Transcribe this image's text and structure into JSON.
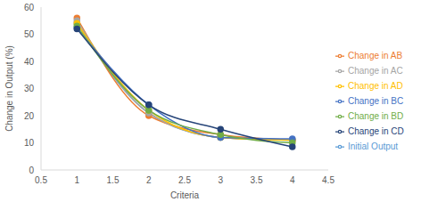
{
  "chart_data": {
    "type": "line",
    "x_label": "Criteria",
    "y_label": "Change in Output (%)",
    "x": [
      1,
      2,
      3,
      4
    ],
    "series": [
      {
        "name": "Initial Output",
        "color": "#5b9bd5",
        "values": [
          54,
          21,
          12,
          11
        ],
        "marker": "circle"
      },
      {
        "name": "Change in AB",
        "color": "#ed7d31",
        "values": [
          56,
          20,
          13,
          11
        ],
        "marker": "circle"
      },
      {
        "name": "Change in AC",
        "color": "#a5a5a5",
        "values": [
          55,
          21,
          12,
          11
        ],
        "marker": "circle"
      },
      {
        "name": "Change in AD",
        "color": "#ffc000",
        "values": [
          54,
          22,
          12,
          11
        ],
        "marker": "circle"
      },
      {
        "name": "Change in BC",
        "color": "#4472c4",
        "values": [
          52.5,
          24,
          12,
          11.5
        ],
        "marker": "circle"
      },
      {
        "name": "Change in BD",
        "color": "#70ad47",
        "values": [
          53,
          22,
          13,
          10
        ],
        "marker": "circle"
      },
      {
        "name": "Change in CD",
        "color": "#264478",
        "values": [
          52,
          24,
          15,
          8.5
        ],
        "marker": "circle"
      }
    ],
    "xlim": [
      0.5,
      4.5
    ],
    "xticks": [
      0.5,
      1,
      1.5,
      2,
      2.5,
      3,
      3.5,
      4,
      4.5
    ],
    "ylim": [
      0,
      60
    ],
    "yticks": [
      0,
      10,
      20,
      30,
      40,
      50,
      60
    ],
    "grid": false,
    "legend": "right"
  }
}
